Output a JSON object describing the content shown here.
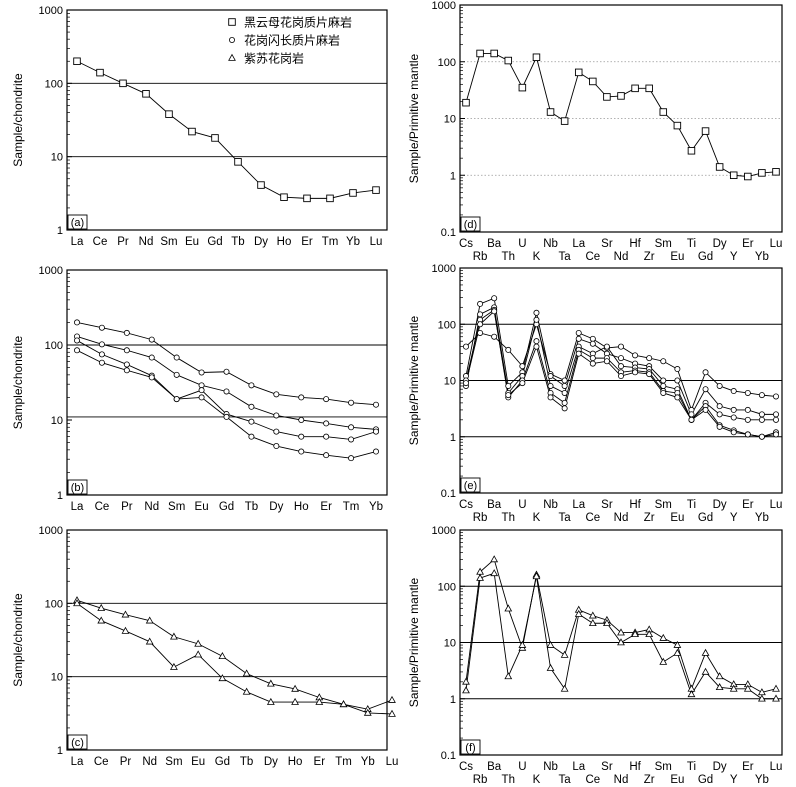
{
  "figure": {
    "legend": [
      {
        "marker": "square",
        "label": "黑云母花岗质片麻岩"
      },
      {
        "marker": "circle",
        "label": "花岗闪长质片麻岩"
      },
      {
        "marker": "triangle",
        "label": "紫苏花岗岩"
      }
    ]
  },
  "chart_data": [
    {
      "id": "a",
      "panel_label": "(a)",
      "type": "line",
      "yscale": "log",
      "ylim": [
        1,
        1000
      ],
      "ytick_labels": [
        "1",
        "10",
        "100",
        "1000"
      ],
      "ylabel": "Sample/chondrite",
      "hlines": [
        10,
        100
      ],
      "marker": "square",
      "categories": [
        "La",
        "Ce",
        "Pr",
        "Nd",
        "Sm",
        "Eu",
        "Gd",
        "Tb",
        "Dy",
        "Ho",
        "Er",
        "Tm",
        "Yb",
        "Lu"
      ],
      "series": [
        {
          "name": "a1",
          "values": [
            200,
            140,
            100,
            72,
            38,
            22,
            18,
            8.5,
            4.1,
            2.8,
            2.7,
            2.7,
            3.2,
            3.5
          ]
        }
      ]
    },
    {
      "id": "b",
      "panel_label": "(b)",
      "type": "line",
      "yscale": "log",
      "ylim": [
        1,
        1000
      ],
      "ytick_labels": [
        "1",
        "10",
        "100",
        "1000"
      ],
      "ylabel": "Sample/chondrite",
      "hlines": [
        11,
        100
      ],
      "marker": "circle",
      "categories": [
        "La",
        "Ce",
        "Pr",
        "Nd",
        "Sm",
        "Eu",
        "Gd",
        "Tb",
        "Dy",
        "Ho",
        "Er",
        "Tm",
        "Yb"
      ],
      "series": [
        {
          "name": "b1",
          "values": [
            200,
            170,
            145,
            118,
            68,
            43,
            44,
            29,
            22,
            20,
            19,
            17,
            16
          ]
        },
        {
          "name": "b2",
          "values": [
            130,
            102,
            85,
            68,
            40,
            29,
            24,
            15,
            11.5,
            10,
            9,
            8,
            7.5
          ]
        },
        {
          "name": "b3",
          "values": [
            115,
            75,
            55,
            39,
            19,
            25,
            12,
            9.5,
            7,
            6,
            6,
            5.5,
            7
          ]
        },
        {
          "name": "b4",
          "values": [
            85,
            58,
            46,
            37,
            19,
            20,
            11,
            6,
            4.5,
            3.8,
            3.4,
            3.1,
            3.8
          ]
        }
      ]
    },
    {
      "id": "c",
      "panel_label": "(c)",
      "type": "line",
      "yscale": "log",
      "ylim": [
        1,
        1000
      ],
      "ytick_labels": [
        "1",
        "10",
        "100",
        "1000"
      ],
      "ylabel": "Sample/chondrite",
      "hlines": [
        10,
        100
      ],
      "marker": "triangle",
      "categories": [
        "La",
        "Ce",
        "Pr",
        "Nd",
        "Sm",
        "Eu",
        "Gd",
        "Tb",
        "Dy",
        "Ho",
        "Er",
        "Tm",
        "Yb",
        "Lu"
      ],
      "series": [
        {
          "name": "c1",
          "values": [
            110,
            86,
            70,
            58,
            35,
            28,
            19,
            11,
            8,
            6.8,
            5.2,
            4.2,
            3.6,
            4.8
          ]
        },
        {
          "name": "c2",
          "values": [
            100,
            58,
            42,
            30,
            13.5,
            20,
            9.5,
            6.2,
            4.5,
            4.5,
            4.5,
            4.2,
            3.2,
            3.1
          ]
        }
      ]
    },
    {
      "id": "d",
      "panel_label": "(d)",
      "type": "line",
      "yscale": "log",
      "ylim": [
        0.1,
        1000
      ],
      "ytick_labels": [
        "0.1",
        "1",
        "10",
        "100",
        "1000"
      ],
      "ylabel": "Sample/Primitive mantle",
      "hline_style": "dotted",
      "hlines": [
        1,
        10,
        100
      ],
      "marker": "square",
      "categories": [
        "Cs",
        "Rb",
        "Ba",
        "Th",
        "U",
        "K",
        "Nb",
        "Ta",
        "La",
        "Ce",
        "Sr",
        "Nd",
        "Hf",
        "Zr",
        "Sm",
        "Eu",
        "Ti",
        "Gd",
        "Dy",
        "Y",
        "Er",
        "Yb",
        "Lu"
      ],
      "cat_rows": [
        0,
        1,
        0,
        1,
        0,
        1,
        0,
        1,
        0,
        1,
        0,
        1,
        0,
        1,
        0,
        1,
        0,
        1,
        0,
        1,
        0,
        1,
        0
      ],
      "series": [
        {
          "name": "d1",
          "values": [
            19,
            140,
            140,
            105,
            35,
            120,
            13,
            9,
            65,
            45,
            24,
            25,
            34,
            34,
            13,
            7.5,
            2.7,
            6,
            1.4,
            1.0,
            0.95,
            1.1,
            1.15
          ]
        }
      ]
    },
    {
      "id": "e",
      "panel_label": "(e)",
      "type": "line",
      "yscale": "log",
      "ylim": [
        0.1,
        1000
      ],
      "ytick_labels": [
        "0.1",
        "1",
        "10",
        "100",
        "1000"
      ],
      "ylabel": "Sample/Primitive mantle",
      "hlines": [
        1,
        10,
        100
      ],
      "marker": "circle",
      "categories": [
        "Cs",
        "Rb",
        "Ba",
        "Th",
        "U",
        "K",
        "Nb",
        "Ta",
        "La",
        "Ce",
        "Sr",
        "Nd",
        "Hf",
        "Zr",
        "Sm",
        "Eu",
        "Ti",
        "Gd",
        "Dy",
        "Y",
        "Er",
        "Yb",
        "Lu"
      ],
      "cat_rows": [
        0,
        1,
        0,
        1,
        0,
        1,
        0,
        1,
        0,
        1,
        0,
        1,
        0,
        1,
        0,
        1,
        0,
        1,
        0,
        1,
        0,
        1,
        0
      ],
      "series": [
        {
          "name": "e1",
          "values": [
            40,
            70,
            60,
            35,
            18,
            100,
            13,
            10,
            70,
            55,
            38,
            40,
            28,
            25,
            22,
            16,
            3,
            14,
            8,
            6.5,
            6,
            5.5,
            5.2
          ]
        },
        {
          "name": "e2",
          "values": [
            12,
            230,
            290,
            8,
            14,
            160,
            12,
            8,
            55,
            45,
            30,
            25,
            20,
            18,
            10,
            10,
            2.5,
            7,
            3.5,
            3,
            3,
            2.5,
            2.5
          ]
        },
        {
          "name": "e3",
          "values": [
            8,
            150,
            200,
            6,
            12,
            120,
            8,
            6,
            40,
            30,
            40,
            18,
            17,
            16,
            8,
            7,
            2,
            4,
            2.5,
            2.2,
            2,
            2,
            2
          ]
        },
        {
          "name": "e4",
          "values": [
            10,
            120,
            180,
            5,
            10,
            50,
            6,
            4,
            35,
            25,
            25,
            14,
            15,
            14,
            6.5,
            6,
            2,
            3.5,
            1.6,
            1.3,
            1.1,
            1.0,
            1.2
          ]
        },
        {
          "name": "e5",
          "values": [
            9,
            100,
            170,
            5.5,
            9,
            40,
            5,
            3.2,
            30,
            20,
            22,
            12,
            14,
            13,
            6,
            5,
            2,
            3,
            1.5,
            1.2,
            1.1,
            1.0,
            1.1
          ]
        }
      ]
    },
    {
      "id": "f",
      "panel_label": "(f)",
      "type": "line",
      "yscale": "log",
      "ylim": [
        0.1,
        1000
      ],
      "ytick_labels": [
        "0.1",
        "1",
        "10",
        "100",
        "1000"
      ],
      "ylabel": "Sample/Primitive mantle",
      "hlines": [
        1,
        10,
        100
      ],
      "marker": "triangle",
      "categories": [
        "Cs",
        "Rb",
        "Ba",
        "Th",
        "U",
        "K",
        "Nb",
        "Ta",
        "La",
        "Ce",
        "Sr",
        "Nd",
        "Hf",
        "Zr",
        "Sm",
        "Eu",
        "Ti",
        "Gd",
        "Dy",
        "Y",
        "Er",
        "Yb",
        "Lu"
      ],
      "cat_rows": [
        0,
        1,
        0,
        1,
        0,
        1,
        0,
        1,
        0,
        1,
        0,
        1,
        0,
        1,
        0,
        1,
        0,
        1,
        0,
        1,
        0,
        1,
        0
      ],
      "series": [
        {
          "name": "f1",
          "values": [
            2,
            180,
            300,
            40,
            8,
            160,
            9,
            6,
            38,
            30,
            25,
            15,
            15,
            17,
            12,
            9,
            1.5,
            6.5,
            2.5,
            1.8,
            1.8,
            1.3,
            1.5
          ]
        },
        {
          "name": "f2",
          "values": [
            1.4,
            140,
            170,
            2.5,
            9,
            150,
            3.5,
            1.5,
            32,
            22,
            22,
            10,
            14,
            14,
            4.5,
            6.5,
            1.2,
            3,
            1.6,
            1.5,
            1.5,
            1.0,
            1.0
          ]
        }
      ]
    }
  ]
}
